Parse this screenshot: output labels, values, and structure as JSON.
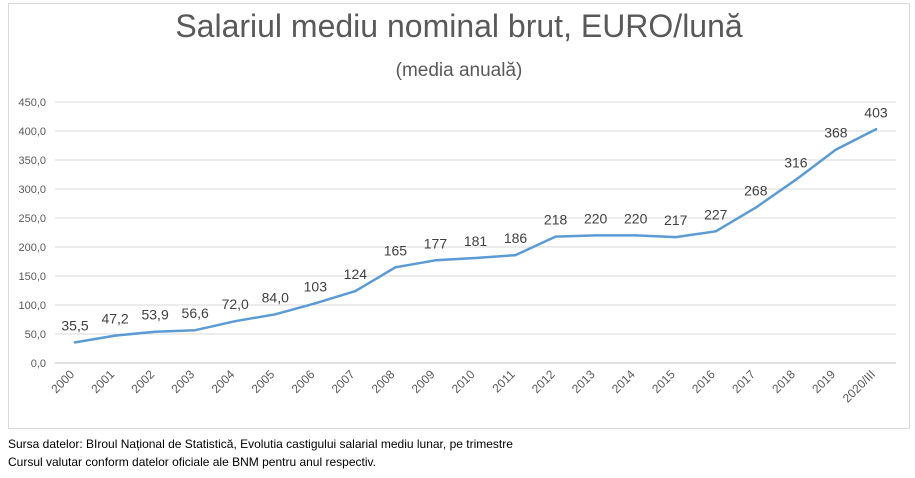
{
  "chart_data": {
    "type": "line",
    "title": "Salariul mediu nominal brut, EURO/lună",
    "subtitle": "(media anuală)",
    "categories": [
      "2000",
      "2001",
      "2002",
      "2003",
      "2004",
      "2005",
      "2006",
      "2007",
      "2008",
      "2009",
      "2010",
      "2011",
      "2012",
      "2013",
      "2014",
      "2015",
      "2016",
      "2017",
      "2018",
      "2019",
      "2020/III"
    ],
    "series": [
      {
        "values": [
          35.5,
          47.2,
          53.9,
          56.6,
          72.0,
          84.0,
          103,
          124,
          165,
          177,
          181,
          186,
          218,
          220,
          220,
          217,
          227,
          268,
          316,
          368,
          403
        ],
        "labels": [
          "35,5",
          "47,2",
          "53,9",
          "56,6",
          "72,0",
          "84,0",
          "103",
          "124",
          "165",
          "177",
          "181",
          "186",
          "218",
          "220",
          "220",
          "217",
          "227",
          "268",
          "316",
          "368",
          "403"
        ],
        "color": "#5b9bd5"
      }
    ],
    "ylim": [
      0,
      450
    ],
    "yticks": [
      "0,0",
      "50,0",
      "100,0",
      "150,0",
      "200,0",
      "250,0",
      "300,0",
      "350,0",
      "400,0",
      "450,0"
    ],
    "grid": true,
    "legend": "none"
  },
  "source": {
    "line1": "Sursa datelor: BIroul Național de Statistică, Evolutia castigului salarial mediu lunar, pe trimestre",
    "line2": "Cursul valutar conform datelor oficiale ale BNM pentru anul respectiv."
  }
}
